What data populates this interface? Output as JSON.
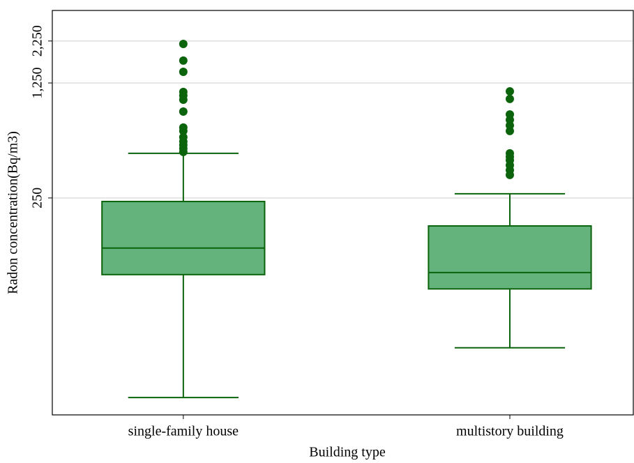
{
  "chart_data": {
    "type": "box",
    "x_label": "Building type",
    "y_label": "Radon concentration(Bq/m3)",
    "categories": [
      "single-family house",
      "multistory building"
    ],
    "boxes": [
      {
        "whisker_low": 15.3,
        "q1": 85.5,
        "median": 124,
        "q3": 238,
        "whisker_high": 467,
        "outliers": [
          2160,
          1710,
          1462,
          1102,
          1049,
          989,
          838,
          670,
          638,
          585,
          551,
          525,
          500,
          476
        ]
      },
      {
        "whisker_low": 30.7,
        "q1": 70,
        "median": 88,
        "q3": 169,
        "whisker_high": 265,
        "outliers": [
          1112,
          1000,
          805,
          746,
          690,
          638,
          467,
          445,
          424,
          395,
          369,
          345
        ]
      }
    ],
    "color": "#0b640b",
    "fill": "#64b27c",
    "log_y": true,
    "ylim": [
      12,
      3450
    ],
    "yticks": [
      250,
      {
        "value": 1250,
        "label": "1,250"
      },
      {
        "value": 2250,
        "label": "2,250"
      }
    ],
    "grid": true
  }
}
